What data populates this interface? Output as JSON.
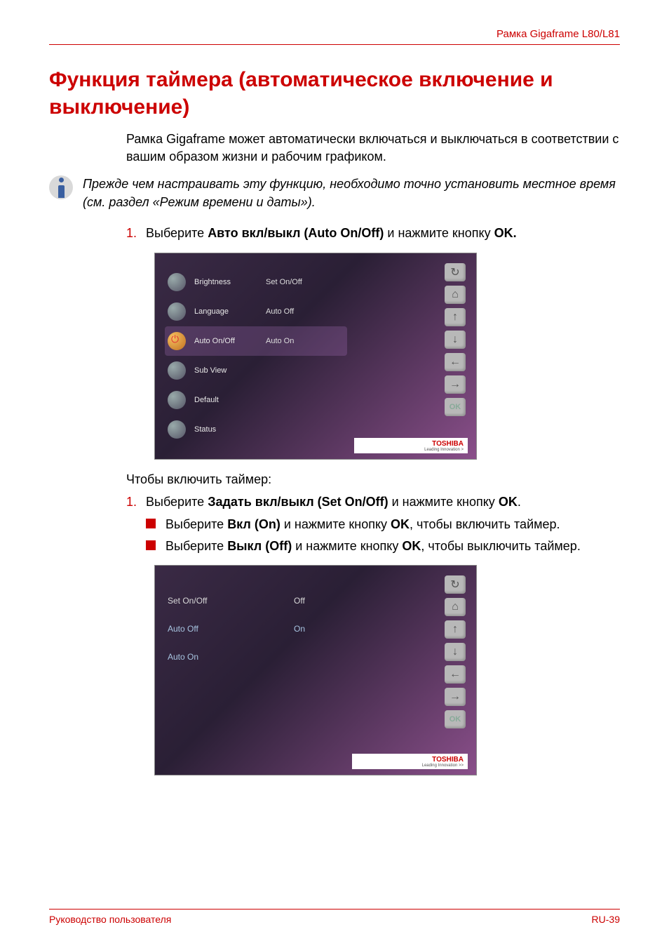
{
  "header": {
    "model": "Рамка Gigaframe L80/L81"
  },
  "title": "Функция таймера (автоматическое включение и выключение)",
  "intro": "Рамка Gigaframe может автоматически включаться и выключаться в соответствии с вашим образом жизни и рабочим графиком.",
  "note": "Прежде чем настраивать эту функцию, необходимо точно установить местное время (см. раздел «Режим времени и даты»).",
  "step1": {
    "num": "1.",
    "pre": "Выберите ",
    "bold": "Авто вкл/выкл (Auto On/Off)",
    "mid": " и нажмите кнопку ",
    "ok": "OK."
  },
  "screenshot1": {
    "rows": [
      {
        "label": "Brightness",
        "value": "Set On/Off",
        "selected": false,
        "icon": "generic"
      },
      {
        "label": "Language",
        "value": "Auto Off",
        "selected": false,
        "icon": "generic"
      },
      {
        "label": "Auto On/Off",
        "value": "Auto On",
        "selected": true,
        "icon": "power"
      },
      {
        "label": "Sub View",
        "value": "",
        "selected": false,
        "icon": "generic"
      },
      {
        "label": "Default",
        "value": "",
        "selected": false,
        "icon": "generic"
      },
      {
        "label": "Status",
        "value": "",
        "selected": false,
        "icon": "generic"
      }
    ],
    "nav": [
      "↻",
      "⌂",
      "↑",
      "↓",
      "←",
      "→",
      "OK"
    ],
    "brand": "TOSHIBA",
    "tag": "Leading Innovation  >"
  },
  "subhead": "Чтобы включить таймер:",
  "step2": {
    "num": "1.",
    "pre": "Выберите ",
    "bold": "Задать вкл/выкл (Set On/Off)",
    "mid": " и нажмите кнопку ",
    "ok": "OK",
    "post": "."
  },
  "bullets": [
    {
      "pre": "Выберите ",
      "bold": "Вкл (On)",
      "mid": " и нажмите кнопку ",
      "ok": "OK",
      "post": ", чтобы включить таймер."
    },
    {
      "pre": "Выберите ",
      "bold": "Выкл (Off)",
      "mid": " и нажмите кнопку ",
      "ok": "OK",
      "post": ", чтобы выключить таймер."
    }
  ],
  "screenshot2": {
    "rows": [
      {
        "label": "Set On/Off",
        "value": "Off"
      },
      {
        "label": "Auto Off",
        "value": "On"
      },
      {
        "label": "Auto On",
        "value": ""
      }
    ],
    "nav": [
      "↻",
      "⌂",
      "↑",
      "↓",
      "←",
      "→",
      "OK"
    ],
    "brand": "TOSHIBA",
    "tag": "Leading Innovation  >>"
  },
  "footer": {
    "left": "Руководство пользователя",
    "right": "RU-39"
  },
  "colors": {
    "accent": "#cc0000",
    "text": "#000000",
    "note_icon_bg": "#d9d9d9",
    "note_icon_fg": "#3a5fa0",
    "shot_bg_start": "#3a2a45",
    "shot_bg_end": "#8a4f8a"
  }
}
